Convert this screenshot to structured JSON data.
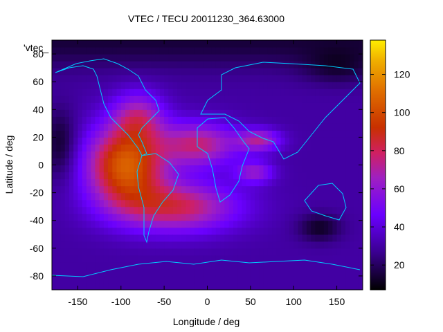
{
  "chart_data": {
    "type": "heatmap",
    "title": "VTEC / TECU 20011230_364.63000",
    "xlabel": "Longitude / deg",
    "ylabel": "Latitude / deg",
    "xlim": [
      -180,
      180
    ],
    "ylim": [
      -90,
      90
    ],
    "x_ticks": [
      -150,
      -100,
      -50,
      0,
      50,
      100,
      150
    ],
    "y_ticks": [
      -80,
      -60,
      -40,
      -20,
      0,
      20,
      40,
      60,
      80
    ],
    "colorbar": {
      "min": 7,
      "max": 138,
      "ticks": [
        20,
        40,
        60,
        80,
        100,
        120
      ]
    },
    "colormap": "black-purple-red-orange-yellow",
    "overlay_label": "'vtec_",
    "coastline_color": "#00ccff",
    "grid": false,
    "peaks": [
      {
        "lon": -95,
        "lat": 0,
        "value": 125
      },
      {
        "lon": -25,
        "lat": 18,
        "value": 105
      },
      {
        "lon": 60,
        "lat": 18,
        "value": 90
      },
      {
        "lon": 55,
        "lat": -5,
        "value": 85
      }
    ]
  }
}
